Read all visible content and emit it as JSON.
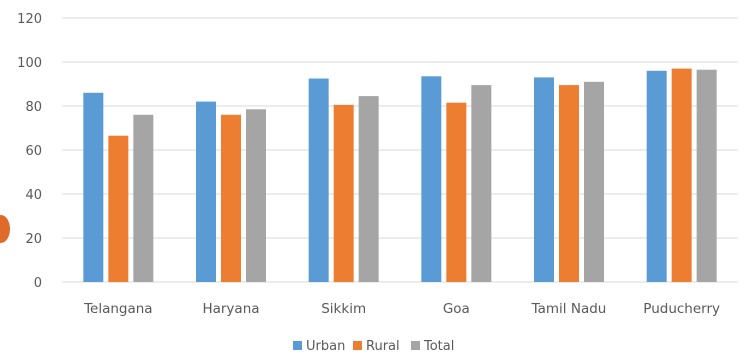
{
  "chart_data": {
    "type": "bar",
    "categories": [
      "Telangana",
      "Haryana",
      "Sikkim",
      "Goa",
      "Tamil Nadu",
      "Puducherry"
    ],
    "series": [
      {
        "name": "Urban",
        "color": "#5b9bd5",
        "values": [
          86,
          82,
          92.5,
          93.5,
          93,
          96
        ]
      },
      {
        "name": "Rural",
        "color": "#ed7d31",
        "values": [
          66.5,
          76,
          80.5,
          81.5,
          89.5,
          97
        ]
      },
      {
        "name": "Total",
        "color": "#a5a5a5",
        "values": [
          76,
          78.5,
          84.5,
          89.5,
          91,
          96.5
        ]
      }
    ],
    "ylim": [
      0,
      120
    ],
    "yticks": [
      0,
      20,
      40,
      60,
      80,
      100,
      120
    ],
    "grid": true,
    "legend_position": "bottom-center",
    "gridline_color": "#d9d9d9"
  }
}
